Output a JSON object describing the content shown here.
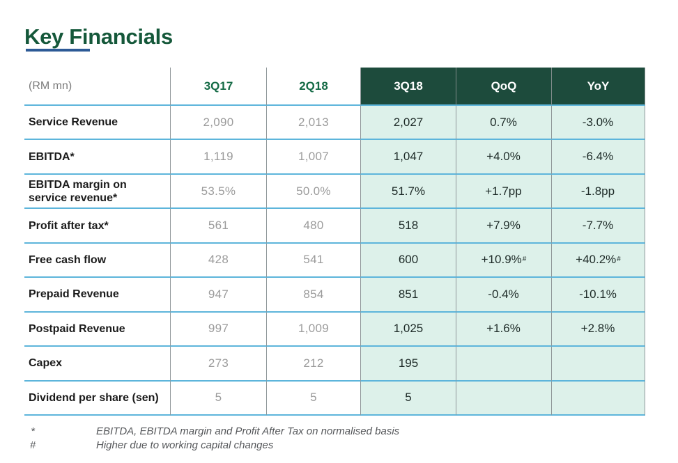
{
  "page": {
    "title": "Key Financials"
  },
  "colors": {
    "title_green": "#15583a",
    "header_dark_green": "#1d4b3c",
    "highlight_mint": "#ddf1ea",
    "row_line_blue": "#5db5db",
    "underline_blue": "#2d5a96",
    "column_header_green": "#156b46",
    "muted_value_gray": "#9b9b9b"
  },
  "table": {
    "unit_label": "(RM mn)",
    "columns": [
      "3Q17",
      "2Q18",
      "3Q18",
      "QoQ",
      "YoY"
    ],
    "rows": [
      {
        "label": "Service Revenue",
        "q317": "2,090",
        "q218": "2,013",
        "q318": "2,027",
        "qoq": "0.7%",
        "yoy": "-3.0%"
      },
      {
        "label": "EBITDA*",
        "q317": "1,119",
        "q218": "1,007",
        "q318": "1,047",
        "qoq": "+4.0%",
        "yoy": "-6.4%"
      },
      {
        "label": "EBITDA margin on service revenue*",
        "q317": "53.5%",
        "q218": "50.0%",
        "q318": "51.7%",
        "qoq": "+1.7pp",
        "yoy": "-1.8pp"
      },
      {
        "label": "Profit after tax*",
        "q317": "561",
        "q218": "480",
        "q318": "518",
        "qoq": "+7.9%",
        "yoy": "-7.7%"
      },
      {
        "label": "Free cash flow",
        "q317": "428",
        "q218": "541",
        "q318": "600",
        "qoq": "+10.9%",
        "qoq_sup": "#",
        "yoy": "+40.2%",
        "yoy_sup": "#"
      },
      {
        "label": "Prepaid Revenue",
        "q317": "947",
        "q218": "854",
        "q318": "851",
        "qoq": "-0.4%",
        "yoy": "-10.1%"
      },
      {
        "label": "Postpaid Revenue",
        "q317": "997",
        "q218": "1,009",
        "q318": "1,025",
        "qoq": "+1.6%",
        "yoy": "+2.8%"
      },
      {
        "label": "Capex",
        "q317": "273",
        "q218": "212",
        "q318": "195",
        "qoq": "",
        "yoy": ""
      },
      {
        "label": "Dividend per share (sen)",
        "q317": "5",
        "q218": "5",
        "q318": "5",
        "qoq": "",
        "yoy": ""
      }
    ]
  },
  "footnotes": [
    {
      "symbol": "*",
      "text": "EBITDA, EBITDA margin and Profit After Tax on normalised basis"
    },
    {
      "symbol": "#",
      "text": "Higher due to working capital changes"
    }
  ]
}
